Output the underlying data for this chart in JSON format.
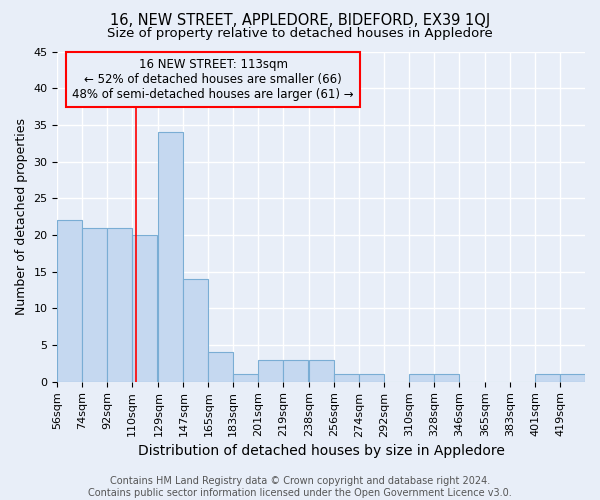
{
  "title": "16, NEW STREET, APPLEDORE, BIDEFORD, EX39 1QJ",
  "subtitle": "Size of property relative to detached houses in Appledore",
  "xlabel": "Distribution of detached houses by size in Appledore",
  "ylabel": "Number of detached properties",
  "bar_left_edges": [
    56,
    74,
    92,
    110,
    129,
    147,
    165,
    183,
    201,
    219,
    238,
    256,
    274,
    292,
    310,
    328,
    346,
    365,
    383,
    401,
    419
  ],
  "bar_widths": [
    18,
    18,
    18,
    18,
    18,
    18,
    18,
    18,
    18,
    18,
    18,
    18,
    18,
    18,
    18,
    18,
    18,
    18,
    18,
    18,
    18
  ],
  "bar_heights": [
    22,
    21,
    21,
    20,
    34,
    14,
    4,
    1,
    3,
    3,
    3,
    1,
    1,
    0,
    1,
    1,
    0,
    0,
    0,
    1,
    1
  ],
  "bar_color": "#c5d8f0",
  "bar_edge_color": "#7aadd4",
  "bar_edge_width": 0.8,
  "tick_labels": [
    "56sqm",
    "74sqm",
    "92sqm",
    "110sqm",
    "129sqm",
    "147sqm",
    "165sqm",
    "183sqm",
    "201sqm",
    "219sqm",
    "238sqm",
    "256sqm",
    "274sqm",
    "292sqm",
    "310sqm",
    "328sqm",
    "346sqm",
    "365sqm",
    "383sqm",
    "401sqm",
    "419sqm"
  ],
  "red_line_x": 113,
  "ylim": [
    0,
    45
  ],
  "yticks": [
    0,
    5,
    10,
    15,
    20,
    25,
    30,
    35,
    40,
    45
  ],
  "annotation_lines": [
    "16 NEW STREET: 113sqm",
    "← 52% of detached houses are smaller (66)",
    "48% of semi-detached houses are larger (61) →"
  ],
  "bg_color": "#e8eef8",
  "grid_color": "#ffffff",
  "title_fontsize": 10.5,
  "subtitle_fontsize": 9.5,
  "xlabel_fontsize": 10,
  "ylabel_fontsize": 9,
  "tick_fontsize": 8,
  "ann_fontsize": 8.5,
  "footer_text": "Contains HM Land Registry data © Crown copyright and database right 2024.\nContains public sector information licensed under the Open Government Licence v3.0.",
  "footer_fontsize": 7
}
